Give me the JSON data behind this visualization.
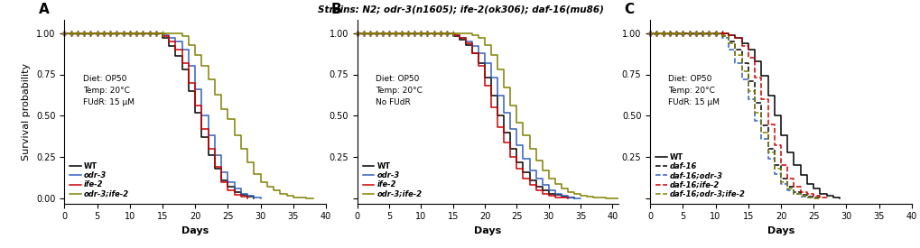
{
  "title": "Strains: N2; odr-3(n1605); ife-2(ok306); daf-16(mu86)",
  "panel_annotations": {
    "A": "Diet: OP50\nTemp: 20°C\nFUdR: 15 μM",
    "B": "Diet: OP50\nTemp: 20°C\nNo FUdR",
    "C": "Diet: OP50\nTemp: 20°C\nFUdR: 15 μM"
  },
  "panel_A": {
    "xlim": [
      0,
      40
    ],
    "xticks": [
      0,
      5,
      10,
      15,
      20,
      25,
      30,
      35,
      40
    ],
    "curves": [
      {
        "label": "WT",
        "color": "#000000",
        "linestyle": "solid",
        "x": [
          0,
          14,
          15,
          16,
          17,
          18,
          19,
          20,
          21,
          22,
          23,
          24,
          25,
          26,
          27,
          28,
          29
        ],
        "y": [
          1.0,
          1.0,
          0.97,
          0.92,
          0.86,
          0.78,
          0.65,
          0.52,
          0.37,
          0.26,
          0.18,
          0.11,
          0.07,
          0.04,
          0.02,
          0.01,
          0.0
        ]
      },
      {
        "label": "odr-3",
        "color": "#3060C0",
        "linestyle": "solid",
        "x": [
          0,
          14,
          15,
          16,
          17,
          18,
          19,
          20,
          21,
          22,
          23,
          24,
          25,
          26,
          27,
          28,
          29,
          30
        ],
        "y": [
          1.0,
          1.0,
          0.99,
          0.97,
          0.95,
          0.9,
          0.8,
          0.66,
          0.5,
          0.38,
          0.26,
          0.16,
          0.1,
          0.06,
          0.03,
          0.015,
          0.005,
          0.0
        ]
      },
      {
        "label": "ife-2",
        "color": "#CC0000",
        "linestyle": "solid",
        "x": [
          0,
          14,
          15,
          16,
          17,
          18,
          19,
          20,
          21,
          22,
          23,
          24,
          25,
          26,
          27,
          28
        ],
        "y": [
          1.0,
          1.0,
          0.98,
          0.95,
          0.9,
          0.82,
          0.7,
          0.56,
          0.42,
          0.3,
          0.19,
          0.1,
          0.05,
          0.02,
          0.01,
          0.0
        ]
      },
      {
        "label": "odr-3;ife-2",
        "color": "#808000",
        "linestyle": "solid",
        "x": [
          0,
          15,
          16,
          17,
          18,
          19,
          20,
          21,
          22,
          23,
          24,
          25,
          26,
          27,
          28,
          29,
          30,
          31,
          32,
          33,
          34,
          35,
          36,
          37,
          38
        ],
        "y": [
          1.0,
          1.0,
          1.0,
          1.0,
          0.98,
          0.93,
          0.87,
          0.8,
          0.72,
          0.63,
          0.54,
          0.48,
          0.38,
          0.3,
          0.22,
          0.15,
          0.1,
          0.07,
          0.05,
          0.03,
          0.015,
          0.008,
          0.004,
          0.002,
          0.0
        ]
      }
    ],
    "censoring_end": {
      "WT": 14,
      "odr-3": 14,
      "ife-2": 14,
      "odr-3;ife-2": 15
    }
  },
  "panel_B": {
    "xlim": [
      0,
      41
    ],
    "xticks": [
      0,
      5,
      10,
      15,
      20,
      25,
      30,
      35,
      40
    ],
    "curves": [
      {
        "label": "WT",
        "color": "#000000",
        "linestyle": "solid",
        "x": [
          0,
          14,
          15,
          16,
          17,
          18,
          19,
          20,
          21,
          22,
          23,
          24,
          25,
          26,
          27,
          28,
          29,
          30,
          31,
          32,
          33,
          34
        ],
        "y": [
          1.0,
          1.0,
          0.98,
          0.96,
          0.93,
          0.88,
          0.82,
          0.73,
          0.62,
          0.5,
          0.4,
          0.3,
          0.22,
          0.16,
          0.11,
          0.07,
          0.05,
          0.03,
          0.02,
          0.01,
          0.004,
          0.0
        ]
      },
      {
        "label": "odr-3",
        "color": "#3060C0",
        "linestyle": "solid",
        "x": [
          0,
          14,
          15,
          16,
          17,
          18,
          19,
          20,
          21,
          22,
          23,
          24,
          25,
          26,
          27,
          28,
          29,
          30,
          31,
          32,
          33,
          34,
          35
        ],
        "y": [
          1.0,
          1.0,
          0.99,
          0.97,
          0.95,
          0.92,
          0.88,
          0.82,
          0.73,
          0.62,
          0.52,
          0.42,
          0.32,
          0.24,
          0.17,
          0.12,
          0.08,
          0.05,
          0.03,
          0.015,
          0.007,
          0.002,
          0.0
        ]
      },
      {
        "label": "ife-2",
        "color": "#CC0000",
        "linestyle": "solid",
        "x": [
          0,
          14,
          15,
          16,
          17,
          18,
          19,
          20,
          21,
          22,
          23,
          24,
          25,
          26,
          27,
          28,
          29,
          30,
          31,
          32,
          33
        ],
        "y": [
          1.0,
          1.0,
          0.99,
          0.97,
          0.94,
          0.88,
          0.8,
          0.68,
          0.55,
          0.43,
          0.34,
          0.25,
          0.18,
          0.12,
          0.08,
          0.05,
          0.03,
          0.015,
          0.007,
          0.003,
          0.0
        ]
      },
      {
        "label": "odr-3;ife-2",
        "color": "#808000",
        "linestyle": "solid",
        "x": [
          0,
          15,
          16,
          17,
          18,
          19,
          20,
          21,
          22,
          23,
          24,
          25,
          26,
          27,
          28,
          29,
          30,
          31,
          32,
          33,
          34,
          35,
          36,
          37,
          38,
          39,
          40,
          41
        ],
        "y": [
          1.0,
          1.0,
          1.0,
          1.0,
          0.99,
          0.97,
          0.93,
          0.87,
          0.78,
          0.67,
          0.56,
          0.46,
          0.38,
          0.3,
          0.23,
          0.17,
          0.12,
          0.09,
          0.06,
          0.04,
          0.025,
          0.015,
          0.009,
          0.005,
          0.003,
          0.002,
          0.001,
          0.0
        ]
      }
    ],
    "censoring_end": {
      "WT": 14,
      "odr-3": 14,
      "ife-2": 14,
      "odr-3;ife-2": 15
    }
  },
  "panel_C": {
    "xlim": [
      0,
      40
    ],
    "xticks": [
      0,
      5,
      10,
      15,
      20,
      25,
      30,
      35,
      40
    ],
    "curves": [
      {
        "label": "WT",
        "color": "#000000",
        "linestyle": "solid",
        "x": [
          0,
          11,
          12,
          13,
          14,
          15,
          16,
          17,
          18,
          19,
          20,
          21,
          22,
          23,
          24,
          25,
          26,
          27,
          28,
          29
        ],
        "y": [
          1.0,
          1.0,
          0.99,
          0.97,
          0.94,
          0.9,
          0.83,
          0.74,
          0.62,
          0.5,
          0.38,
          0.28,
          0.2,
          0.14,
          0.09,
          0.06,
          0.03,
          0.015,
          0.006,
          0.0
        ]
      },
      {
        "label": "daf-16",
        "color": "#000000",
        "linestyle": "dashed",
        "x": [
          0,
          10,
          11,
          12,
          13,
          14,
          15,
          16,
          17,
          18,
          19,
          20,
          21,
          22,
          23,
          24,
          25,
          26
        ],
        "y": [
          1.0,
          1.0,
          0.98,
          0.95,
          0.9,
          0.82,
          0.71,
          0.58,
          0.44,
          0.3,
          0.2,
          0.12,
          0.07,
          0.04,
          0.02,
          0.01,
          0.004,
          0.0
        ]
      },
      {
        "label": "daf-16;odr-3",
        "color": "#3060C0",
        "linestyle": "dashed",
        "x": [
          0,
          10,
          11,
          12,
          13,
          14,
          15,
          16,
          17,
          18,
          19,
          20,
          21,
          22,
          23,
          24,
          25
        ],
        "y": [
          1.0,
          1.0,
          0.97,
          0.9,
          0.82,
          0.72,
          0.6,
          0.47,
          0.36,
          0.24,
          0.15,
          0.09,
          0.05,
          0.025,
          0.01,
          0.004,
          0.0
        ]
      },
      {
        "label": "daf-16;ife-2",
        "color": "#CC0000",
        "linestyle": "dashed",
        "x": [
          0,
          11,
          12,
          13,
          14,
          15,
          16,
          17,
          18,
          19,
          20,
          21,
          22,
          23,
          24,
          25,
          26,
          27
        ],
        "y": [
          1.0,
          1.0,
          0.99,
          0.97,
          0.92,
          0.85,
          0.73,
          0.6,
          0.45,
          0.32,
          0.2,
          0.12,
          0.07,
          0.04,
          0.025,
          0.015,
          0.007,
          0.0
        ]
      },
      {
        "label": "daf-16;odr-3;ife-2",
        "color": "#808000",
        "linestyle": "dashed",
        "x": [
          0,
          10,
          11,
          12,
          13,
          14,
          15,
          16,
          17,
          18,
          19,
          20,
          21,
          22,
          23,
          24,
          25,
          26
        ],
        "y": [
          1.0,
          1.0,
          0.98,
          0.94,
          0.87,
          0.77,
          0.65,
          0.52,
          0.4,
          0.28,
          0.18,
          0.1,
          0.06,
          0.03,
          0.015,
          0.007,
          0.002,
          0.0
        ]
      }
    ],
    "censoring_end": {
      "WT": 11,
      "daf-16": 10,
      "daf-16;odr-3": 10,
      "daf-16;ife-2": 11,
      "daf-16;odr-3;ife-2": 10
    }
  }
}
